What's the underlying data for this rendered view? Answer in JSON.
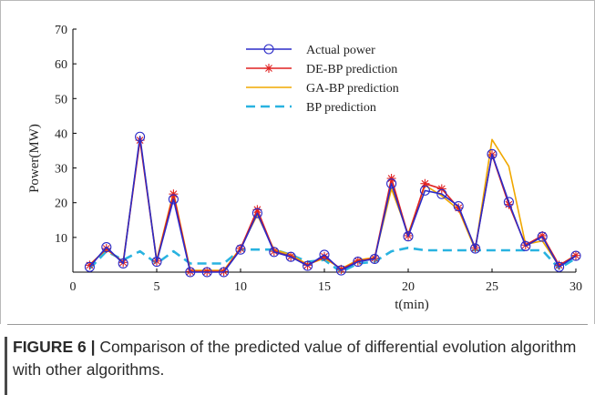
{
  "caption": {
    "label": "FIGURE 6 |",
    "text": "Comparison of the predicted value of differential evolution algorithm with other algorithms."
  },
  "chart_data": {
    "type": "line",
    "xlabel": "t(min)",
    "ylabel": "Power(MW)",
    "xlim": [
      0,
      30
    ],
    "ylim": [
      0,
      70
    ],
    "xticks": [
      0,
      5,
      10,
      15,
      20,
      25,
      30
    ],
    "yticks": [
      10,
      20,
      30,
      40,
      50,
      60,
      70
    ],
    "grid": false,
    "legend": "top-center",
    "x": [
      1,
      2,
      3,
      4,
      5,
      6,
      7,
      8,
      9,
      10,
      11,
      12,
      13,
      14,
      15,
      16,
      17,
      18,
      19,
      20,
      21,
      22,
      23,
      24,
      25,
      26,
      27,
      28,
      29,
      30
    ],
    "series": [
      {
        "name": "Actual power",
        "color": "#2b2bc8",
        "style": "line-circle",
        "values": [
          1.5,
          7.2,
          2.5,
          39,
          3,
          21,
          0,
          0,
          0,
          6.5,
          17,
          5.8,
          4.4,
          1.8,
          5,
          0.5,
          3,
          3.8,
          25.5,
          10.3,
          23.5,
          22.5,
          19,
          6.8,
          34,
          20.2,
          7.5,
          10.2,
          1.5,
          4.7
        ]
      },
      {
        "name": "DE-BP prediction",
        "color": "#e02020",
        "style": "line-star",
        "values": [
          2,
          6.8,
          2.8,
          38,
          3.2,
          22.5,
          0.2,
          0.2,
          0.2,
          6.8,
          18,
          6,
          4.5,
          2,
          4.5,
          0.8,
          3.2,
          4,
          27,
          10.5,
          25.5,
          24,
          18.5,
          7,
          33.8,
          19.5,
          7.8,
          10.5,
          2,
          4.8
        ]
      },
      {
        "name": "GA-BP prediction",
        "color": "#f0a800",
        "style": "line",
        "values": [
          2.2,
          6.5,
          3,
          38.5,
          3.5,
          23,
          0.5,
          0.5,
          0.5,
          7,
          16.5,
          6.5,
          5,
          2.2,
          4,
          1,
          3.5,
          4.2,
          24,
          11,
          25,
          22,
          18,
          6.5,
          38.2,
          30.5,
          8,
          9,
          1.8,
          5
        ]
      },
      {
        "name": "BP prediction",
        "color": "#29b3e0",
        "style": "dashed",
        "values": [
          1,
          6,
          3.5,
          6,
          2.5,
          6,
          2.5,
          2.5,
          2.5,
          6.5,
          6.5,
          6.5,
          5,
          3,
          3.5,
          0,
          2.5,
          3,
          6,
          7,
          6.3,
          6.3,
          6.3,
          6.3,
          6.3,
          6.3,
          6.3,
          6.3,
          1,
          4
        ]
      }
    ]
  }
}
